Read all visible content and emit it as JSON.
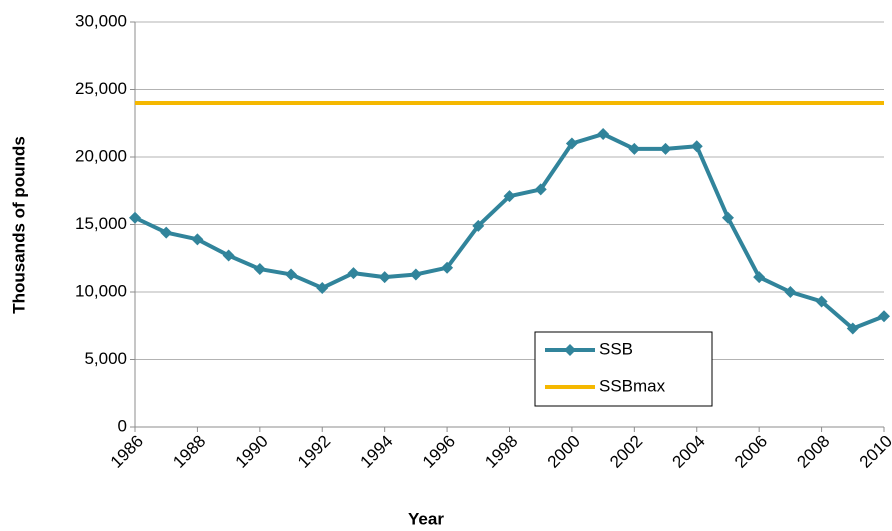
{
  "chart_data": {
    "type": "line",
    "x_label": "Year",
    "y_label": "Thousands of pounds",
    "x": [
      1986,
      1987,
      1988,
      1989,
      1990,
      1991,
      1992,
      1993,
      1994,
      1995,
      1996,
      1997,
      1998,
      1999,
      2000,
      2001,
      2002,
      2003,
      2004,
      2005,
      2006,
      2007,
      2008,
      2009,
      2010
    ],
    "series": [
      {
        "name": "SSB",
        "color": "#31849b",
        "marker": "diamond",
        "values": [
          15500,
          14400,
          13900,
          12700,
          11700,
          11300,
          10300,
          11400,
          11100,
          11300,
          11800,
          14900,
          17100,
          17600,
          21000,
          21700,
          20600,
          20600,
          20800,
          15500,
          11100,
          10000,
          9300,
          7300,
          8200
        ]
      },
      {
        "name": "SSBmax",
        "color": "#f5b800",
        "values": [
          24000,
          24000,
          24000,
          24000,
          24000,
          24000,
          24000,
          24000,
          24000,
          24000,
          24000,
          24000,
          24000,
          24000,
          24000,
          24000,
          24000,
          24000,
          24000,
          24000,
          24000,
          24000,
          24000,
          24000,
          24000
        ]
      }
    ],
    "xlim": [
      1986,
      2010
    ],
    "xticks": [
      1986,
      1988,
      1990,
      1992,
      1994,
      1996,
      1998,
      2000,
      2002,
      2004,
      2006,
      2008,
      2010
    ],
    "ylim": [
      0,
      30000
    ],
    "yticks": [
      0,
      {
        "value": 5000,
        "label": "5,000"
      },
      {
        "value": 10000,
        "label": "10,000"
      },
      {
        "value": 15000,
        "label": "15,000"
      },
      {
        "value": 20000,
        "label": "20,000"
      },
      {
        "value": 25000,
        "label": "25,000"
      },
      {
        "value": 30000,
        "label": "30,000"
      }
    ],
    "grid": true,
    "legend_position": "lower right"
  }
}
